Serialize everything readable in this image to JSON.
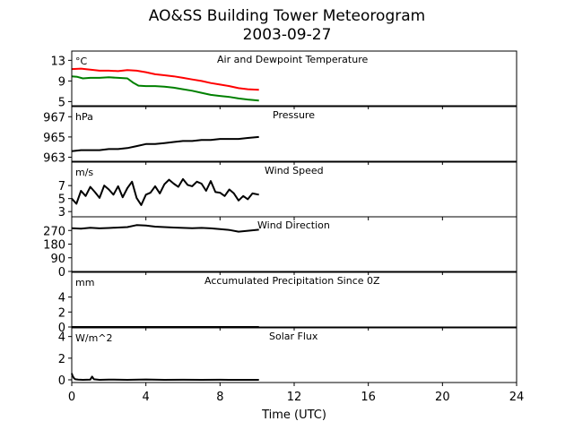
{
  "figure": {
    "title_line1": "AO&SS Building Tower Meteorogram",
    "title_line2": "2003-09-27"
  },
  "chart_data": [
    {
      "type": "line",
      "title": "Air and Dewpoint Temperature",
      "unit_label": "°C",
      "xlim": [
        0,
        24
      ],
      "ylim": [
        4.2,
        14.8
      ],
      "yticks": [
        5,
        9,
        13
      ],
      "series": [
        {
          "color": "#ff0000",
          "x": [
            0,
            0.5,
            1,
            1.5,
            2,
            2.5,
            3,
            3.5,
            4,
            4.5,
            5,
            5.5,
            6,
            6.5,
            7,
            7.5,
            8,
            8.5,
            9,
            9.5,
            10.1
          ],
          "values": [
            11.3,
            11.4,
            11.2,
            11.0,
            11.0,
            10.9,
            11.1,
            11.0,
            10.7,
            10.3,
            10.1,
            9.9,
            9.6,
            9.3,
            9.0,
            8.6,
            8.3,
            8.0,
            7.6,
            7.4,
            7.3
          ]
        },
        {
          "color": "#008000",
          "x": [
            0,
            0.3,
            0.6,
            1,
            1.5,
            2,
            2.5,
            3,
            3.3,
            3.6,
            4,
            4.5,
            5,
            5.5,
            6,
            6.5,
            7,
            7.5,
            8,
            8.5,
            9,
            9.5,
            10.1
          ],
          "values": [
            9.9,
            9.8,
            9.5,
            9.6,
            9.6,
            9.7,
            9.6,
            9.5,
            8.7,
            8.1,
            8.0,
            8.0,
            7.9,
            7.7,
            7.4,
            7.1,
            6.7,
            6.3,
            6.1,
            5.9,
            5.6,
            5.4,
            5.2
          ]
        }
      ]
    },
    {
      "type": "line",
      "title": "Pressure",
      "unit_label": "hPa",
      "xlim": [
        0,
        24
      ],
      "ylim": [
        962.6,
        968.0
      ],
      "yticks": [
        963,
        965,
        967
      ],
      "series": [
        {
          "color": "#000000",
          "x": [
            0,
            0.5,
            1,
            1.5,
            2,
            2.5,
            3,
            3.5,
            4,
            4.5,
            5,
            5.5,
            6,
            6.5,
            7,
            7.5,
            8,
            8.5,
            9,
            9.5,
            10.1
          ],
          "values": [
            963.6,
            963.7,
            963.7,
            963.7,
            963.8,
            963.8,
            963.9,
            964.1,
            964.3,
            964.3,
            964.4,
            964.5,
            964.6,
            964.6,
            964.7,
            964.7,
            964.8,
            964.8,
            964.8,
            964.9,
            965.0
          ]
        }
      ]
    },
    {
      "type": "line",
      "title": "Wind Speed",
      "unit_label": "m/s",
      "xlim": [
        0,
        24
      ],
      "ylim": [
        2.2,
        10.6
      ],
      "yticks": [
        3,
        5,
        7
      ],
      "series": [
        {
          "color": "#000000",
          "x": [
            0,
            0.25,
            0.5,
            0.75,
            1,
            1.25,
            1.5,
            1.75,
            2,
            2.25,
            2.5,
            2.75,
            3,
            3.25,
            3.5,
            3.75,
            4,
            4.25,
            4.5,
            4.75,
            5,
            5.25,
            5.5,
            5.75,
            6,
            6.25,
            6.5,
            6.75,
            7,
            7.25,
            7.5,
            7.75,
            8,
            8.25,
            8.5,
            8.75,
            9,
            9.25,
            9.5,
            9.75,
            10.1
          ],
          "values": [
            5.0,
            4.2,
            6.2,
            5.4,
            6.8,
            6.0,
            5.1,
            7.0,
            6.4,
            5.6,
            6.9,
            5.2,
            6.6,
            7.6,
            5.1,
            4.0,
            5.6,
            5.9,
            6.9,
            5.8,
            7.2,
            7.9,
            7.3,
            6.8,
            8.0,
            7.1,
            6.9,
            7.6,
            7.3,
            6.2,
            7.7,
            6.0,
            5.9,
            5.4,
            6.4,
            5.8,
            4.7,
            5.4,
            4.9,
            5.8,
            5.6
          ]
        }
      ]
    },
    {
      "type": "line",
      "title": "Wind Direction",
      "unit_label": "",
      "xlim": [
        0,
        24
      ],
      "ylim": [
        0,
        360
      ],
      "yticks": [
        0,
        90,
        180,
        270
      ],
      "series": [
        {
          "color": "#000000",
          "x": [
            0,
            0.5,
            1,
            1.5,
            2,
            2.5,
            3,
            3.5,
            4,
            4.5,
            5,
            5.5,
            6,
            6.5,
            7,
            7.5,
            8,
            8.5,
            9,
            9.5,
            10.1
          ],
          "values": [
            285,
            282,
            288,
            284,
            286,
            289,
            292,
            305,
            303,
            295,
            292,
            289,
            287,
            285,
            287,
            284,
            279,
            273,
            262,
            268,
            275
          ]
        }
      ]
    },
    {
      "type": "line",
      "title": "Accumulated Precipitation Since 0Z",
      "unit_label": "mm",
      "xlim": [
        0,
        24
      ],
      "ylim": [
        0,
        7.3
      ],
      "yticks": [
        0,
        2,
        4
      ],
      "series": [
        {
          "color": "#000000",
          "x": [
            0,
            10.1
          ],
          "values": [
            0,
            0
          ]
        }
      ]
    },
    {
      "type": "line",
      "title": "Solar Flux",
      "unit_label": "W/m^2",
      "xlim": [
        0,
        24
      ],
      "ylim": [
        -0.25,
        4.8
      ],
      "yticks": [
        0,
        2,
        4
      ],
      "series": [
        {
          "color": "#000000",
          "x": [
            0,
            0.05,
            0.12,
            0.2,
            0.35,
            0.6,
            1.0,
            1.1,
            1.2,
            1.5,
            2,
            3,
            4,
            5,
            6,
            7,
            8,
            9,
            10.1
          ],
          "values": [
            0.6,
            0.35,
            0.15,
            0.05,
            0.02,
            0,
            0.02,
            0.3,
            0.05,
            0,
            0.02,
            0,
            0.03,
            0,
            0.01,
            0,
            0.01,
            0,
            0
          ]
        }
      ]
    }
  ],
  "x_axis": {
    "label": "Time (UTC)",
    "ticks": [
      0,
      4,
      8,
      12,
      16,
      20,
      24
    ]
  }
}
